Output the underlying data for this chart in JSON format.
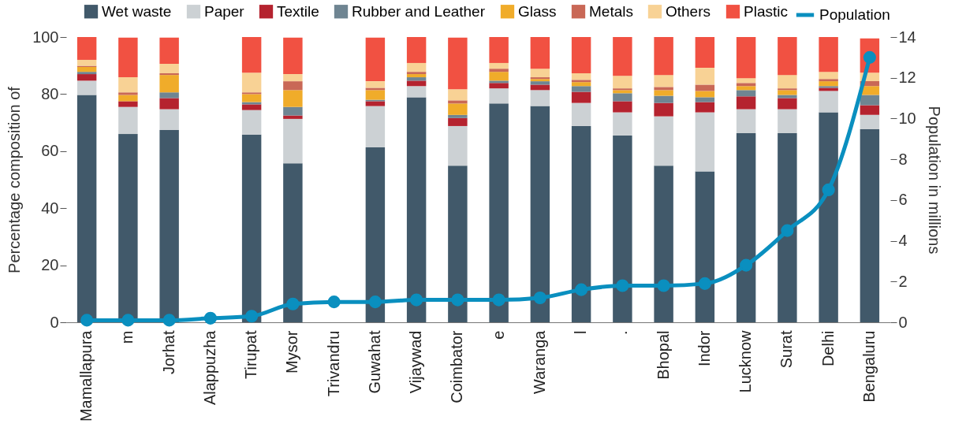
{
  "chart_data": {
    "type": "bar",
    "stacked": true,
    "ylabel": "Percentage composition of",
    "y2label": "Population in millions",
    "categories": [
      "Mamallapura",
      "m",
      "Jorhat",
      "Alappuzha",
      "Tirupat",
      "Mysor",
      "Trivandru",
      "Guwahat",
      "Vijaywad",
      "Coimbator",
      "e",
      "Waranga",
      "l",
      ".",
      "Bhopal",
      "Indor",
      "Lucknow",
      "Surat",
      "Delhi",
      "Bengaluru"
    ],
    "series": [
      {
        "name": "Wet waste",
        "color": "#41596a",
        "values": [
          79.7,
          66,
          67.4,
          null,
          65.8,
          55.7,
          null,
          61.3,
          78.9,
          54.9,
          76.7,
          75.8,
          68.8,
          65.5,
          54.9,
          52.9,
          66.3,
          66.3,
          73.6,
          67.7
        ]
      },
      {
        "name": "Paper",
        "color": "#ccd1d4",
        "values": [
          5,
          9.5,
          7.3,
          null,
          8.6,
          15.6,
          null,
          14.5,
          3.9,
          13.9,
          5.3,
          5.6,
          8.1,
          8.1,
          17.3,
          20.7,
          8.4,
          8.4,
          7.5,
          5
        ]
      },
      {
        "name": "Textile",
        "color": "#b5232f",
        "values": [
          2.3,
          2,
          3.9,
          null,
          2,
          1.2,
          null,
          1.7,
          1.9,
          2.8,
          1.9,
          1.9,
          3.9,
          3.9,
          4.7,
          3.6,
          4.5,
          3.9,
          1.1,
          3.4
        ]
      },
      {
        "name": "Rubber and Leather",
        "color": "#6f8592",
        "values": [
          0.8,
          0,
          2,
          null,
          0.8,
          3,
          null,
          0.5,
          1.2,
          1.1,
          0.8,
          1.2,
          2,
          2.8,
          2.5,
          1.7,
          2.2,
          1.1,
          0.6,
          3.6
        ]
      },
      {
        "name": "Glass",
        "color": "#f0ac2a",
        "values": [
          1.7,
          2.2,
          6.1,
          null,
          2.8,
          5.9,
          null,
          3.4,
          1.1,
          4,
          3.1,
          0.8,
          1.4,
          1.1,
          2,
          2.2,
          1.4,
          1.7,
          1.7,
          3.1
        ]
      },
      {
        "name": "Metals",
        "color": "#c96856",
        "values": [
          0.4,
          0.9,
          0.6,
          null,
          0.6,
          3.1,
          null,
          0.8,
          0.8,
          1.1,
          1.1,
          0.6,
          0.8,
          0.6,
          1.1,
          2.2,
          1.1,
          0.6,
          0.8,
          1.7
        ]
      },
      {
        "name": "Others",
        "color": "#f8d295",
        "values": [
          2.1,
          5.3,
          3.3,
          null,
          6.9,
          2.5,
          null,
          2.3,
          3.1,
          3.9,
          2,
          3,
          2.3,
          4.4,
          4.2,
          5.9,
          1.7,
          4.7,
          2.5,
          3
        ]
      },
      {
        "name": "Plastic",
        "color": "#f15142",
        "values": [
          8,
          13.9,
          9.2,
          null,
          12.5,
          12.8,
          null,
          15.3,
          9.1,
          18.1,
          9.1,
          11.1,
          12.7,
          13.6,
          13.3,
          10.8,
          14.4,
          13.3,
          12.2,
          12
        ]
      },
      {
        "name": "Population",
        "color": "#0a8fbf",
        "type": "line",
        "axis": "y2",
        "values": [
          0.1,
          0.1,
          0.1,
          0.2,
          0.3,
          0.9,
          1.0,
          1.0,
          1.1,
          1.1,
          1.1,
          1.2,
          1.6,
          1.8,
          1.8,
          1.9,
          2.8,
          4.5,
          6.5,
          13.0
        ]
      }
    ],
    "ylim": [
      0,
      100
    ],
    "yticks": [
      0,
      20,
      40,
      60,
      80,
      100
    ],
    "y2lim": [
      0,
      14
    ],
    "y2ticks": [
      0,
      2,
      4,
      6,
      8,
      10,
      12,
      14
    ],
    "legend": "top",
    "marker": "circle",
    "line_style": "solid",
    "grid": false
  }
}
